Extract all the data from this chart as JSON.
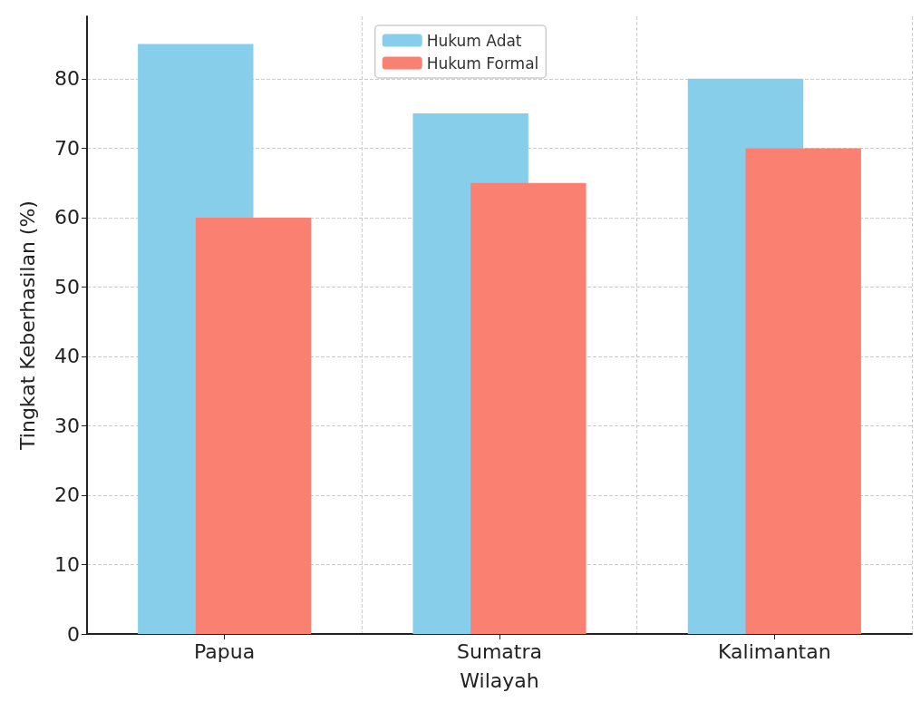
{
  "chart_data": {
    "type": "bar",
    "xlabel": "Wilayah",
    "ylabel": "Tingkat Keberhasilan (%)",
    "categories": [
      "Papua",
      "Sumatra",
      "Kalimantan"
    ],
    "series": [
      {
        "name": "Hukum Adat",
        "color": "#87ceeb",
        "values": [
          85,
          75,
          80
        ]
      },
      {
        "name": "Hukum Formal",
        "color": "#fa8072",
        "values": [
          60,
          65,
          70
        ]
      }
    ],
    "ylim": [
      0,
      89
    ],
    "yticks": [
      0,
      10,
      20,
      30,
      40,
      50,
      60,
      70,
      80
    ],
    "grid": true,
    "legend": "top"
  }
}
